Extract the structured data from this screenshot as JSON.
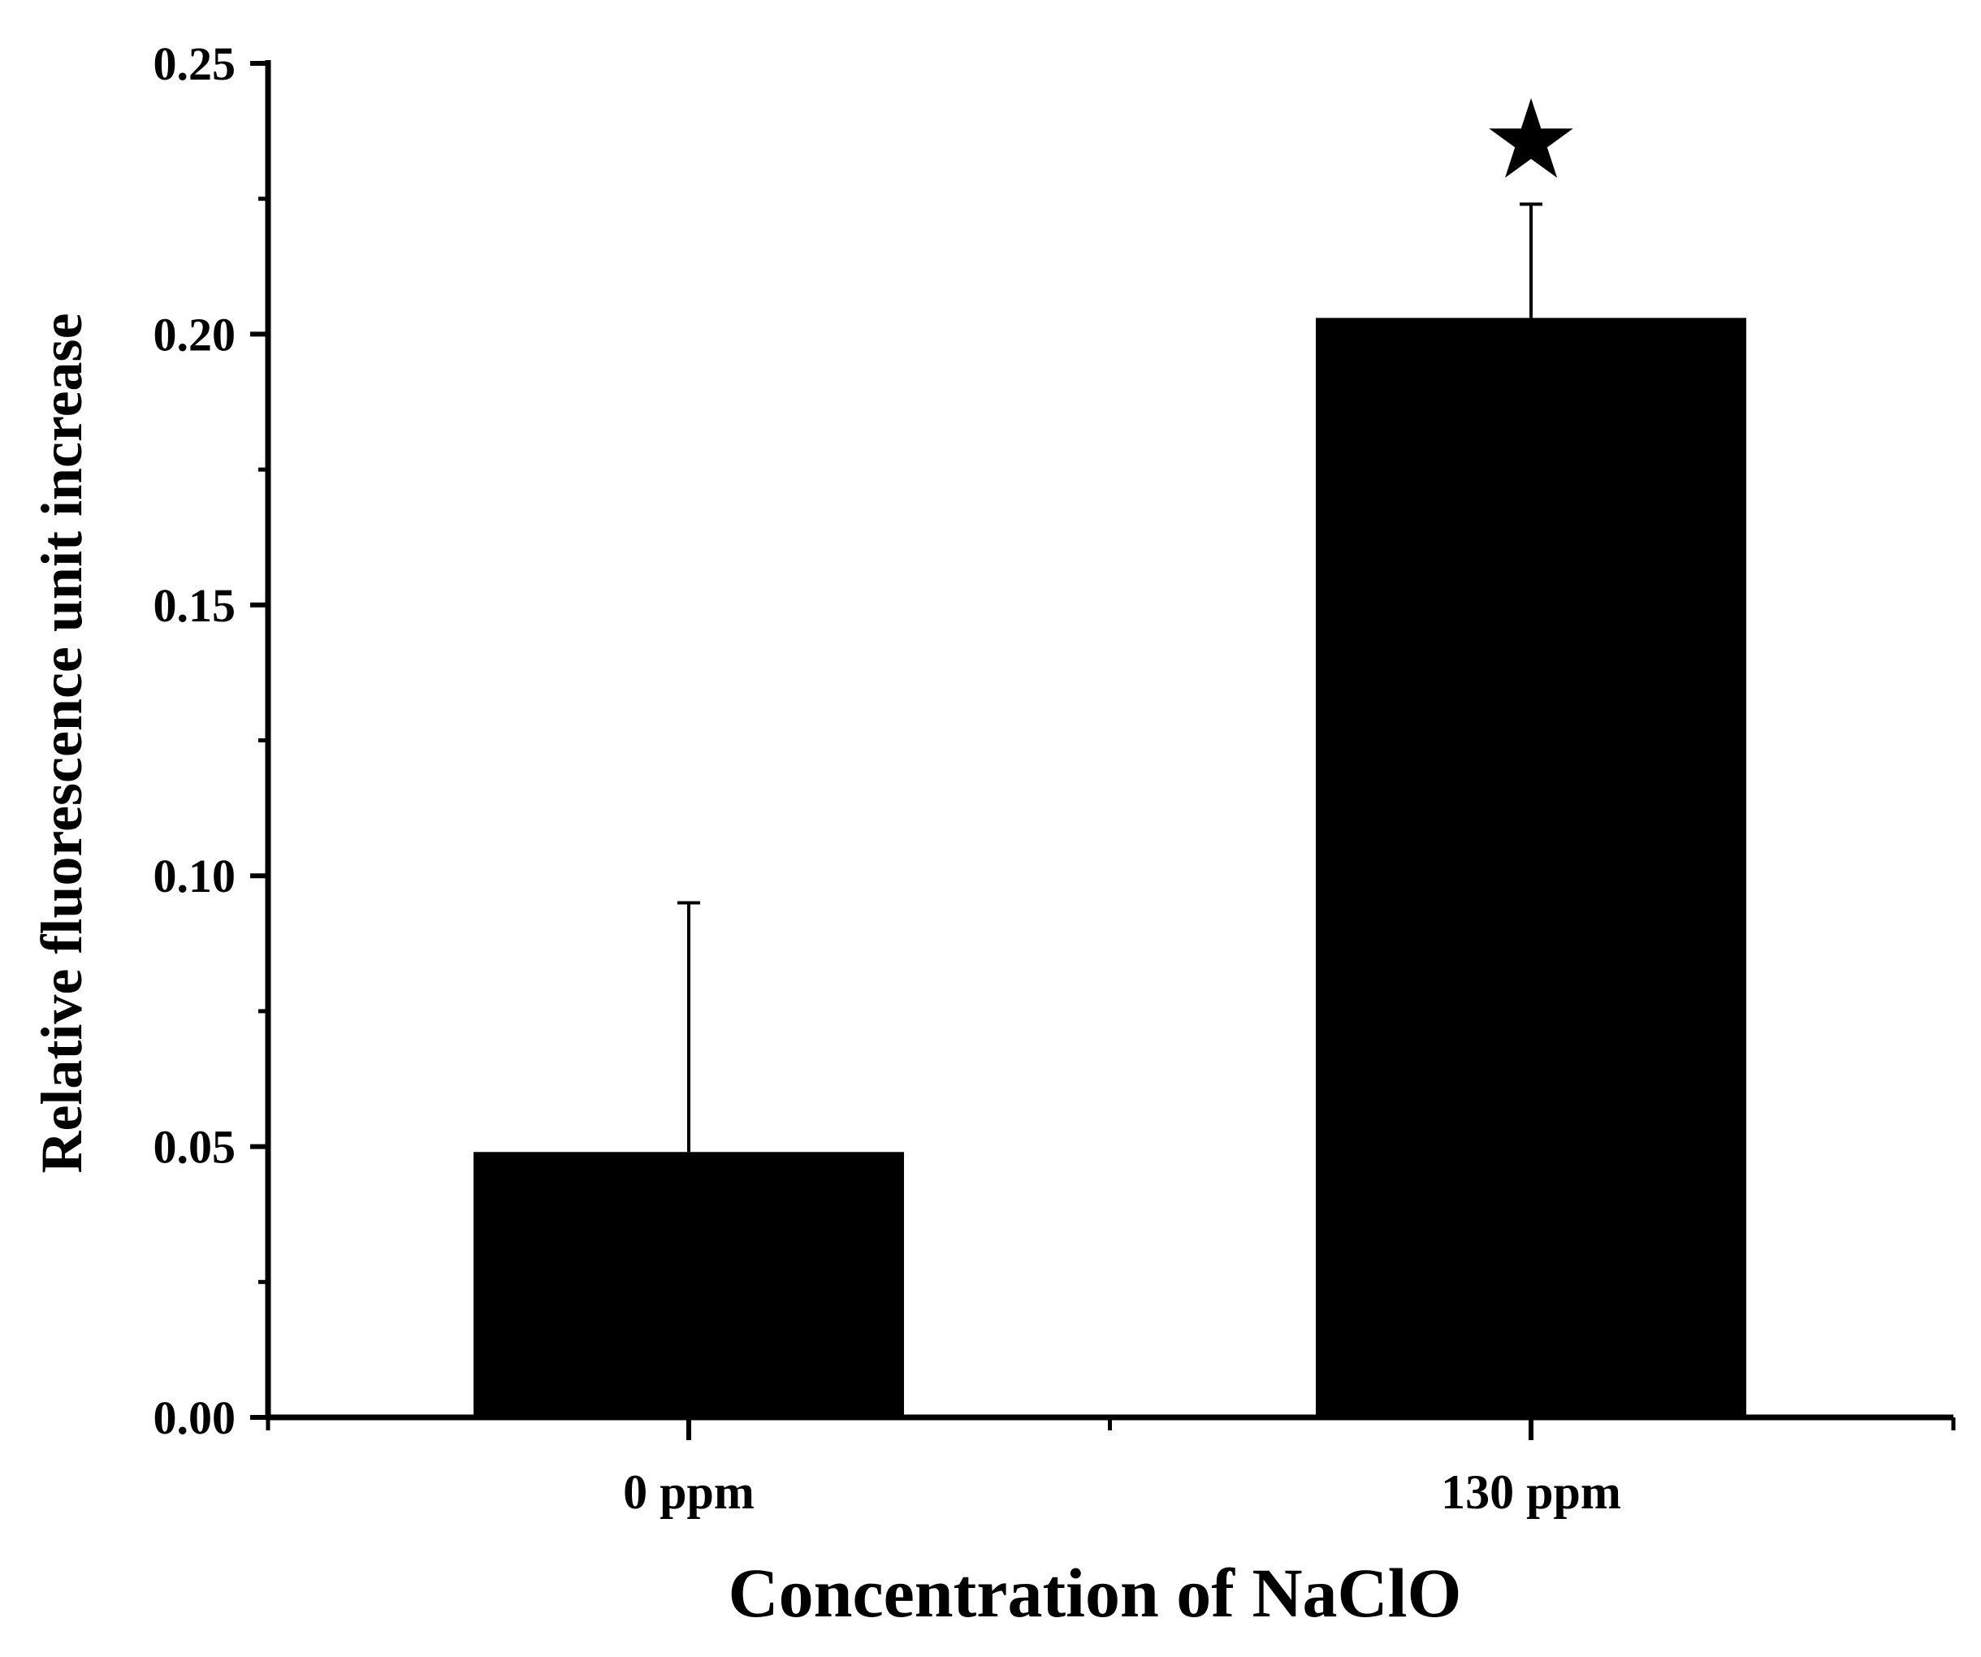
{
  "chart_data": {
    "type": "bar",
    "title": "",
    "xlabel": "Concentration of NaClO",
    "ylabel": "Relative fluorescence unit increase",
    "categories": [
      "0 ppm",
      "130 ppm"
    ],
    "values": [
      0.049,
      0.203
    ],
    "error_plus": [
      0.046,
      0.021
    ],
    "ylim": [
      0.0,
      0.25
    ],
    "yticks": [
      0.0,
      0.05,
      0.1,
      0.15,
      0.2,
      0.25
    ],
    "ytick_labels": [
      "0.00",
      "0.05",
      "0.10",
      "0.15",
      "0.20",
      "0.25"
    ],
    "significance_markers": [
      "",
      "★"
    ],
    "grid": false,
    "legend": "none",
    "bar_color": "#000000",
    "axis_color": "#000000"
  }
}
